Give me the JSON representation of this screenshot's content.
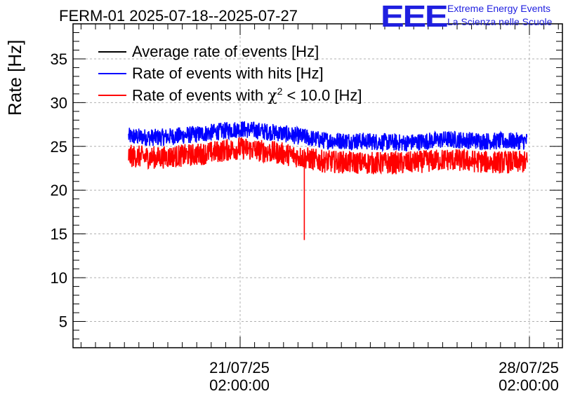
{
  "title": "FERM-01 2025-07-18--2025-07-27",
  "logo": {
    "mark": "EEE",
    "line1": "Extreme Energy Events",
    "line2": "La Scienza nelle Scuole",
    "color": "#1f1fe0"
  },
  "chart_data": {
    "type": "line",
    "title": "FERM-01 2025-07-18--2025-07-27",
    "ylabel": "Rate [Hz]",
    "xlabel": "",
    "ylim": [
      2,
      39
    ],
    "yticks": [
      5,
      10,
      15,
      20,
      25,
      30,
      35
    ],
    "x_range_days": [
      0,
      9
    ],
    "xticks": [
      {
        "day": 3.0,
        "label_date": "21/07/25",
        "label_time": "02:00:00"
      },
      {
        "day": 10.0,
        "label_date": "28/07/25",
        "label_time": "02:00:00"
      }
    ],
    "grid": true,
    "legend_position": "top-left",
    "series": [
      {
        "name": "Average rate of events [Hz]",
        "color": "#000000",
        "baseline": [],
        "noise": 0
      },
      {
        "name": "Rate of events with hits [Hz]",
        "color": "#0000ff",
        "baseline_points": [
          [
            0,
            26.2
          ],
          [
            1,
            26.0
          ],
          [
            2,
            26.4
          ],
          [
            3,
            27.0
          ],
          [
            4,
            26.5
          ],
          [
            5,
            25.7
          ],
          [
            6,
            25.6
          ],
          [
            7,
            25.4
          ],
          [
            8,
            25.8
          ],
          [
            9,
            25.6
          ]
        ],
        "noise_amplitude": 1.0
      },
      {
        "name": "Rate of events with χ² < 10.0 [Hz]",
        "color": "#ff0000",
        "baseline_points": [
          [
            0,
            24.0
          ],
          [
            1,
            23.7
          ],
          [
            2,
            24.1
          ],
          [
            3,
            24.8
          ],
          [
            4,
            24.2
          ],
          [
            5,
            23.3
          ],
          [
            6,
            23.1
          ],
          [
            7,
            23.1
          ],
          [
            8,
            23.5
          ],
          [
            9,
            23.2
          ]
        ],
        "noise_amplitude": 1.3,
        "spike": {
          "day": 4.55,
          "value": 14.3
        }
      }
    ]
  },
  "legend": [
    {
      "label": "Average rate of events [Hz]",
      "color": "#000000"
    },
    {
      "label": "Rate of events with hits [Hz]",
      "color": "#0000ff"
    },
    {
      "label_prefix": "Rate of events with ",
      "label_chi": "χ",
      "label_sup": "2",
      "label_suffix": " < 10.0 [Hz]",
      "color": "#ff0000"
    }
  ]
}
